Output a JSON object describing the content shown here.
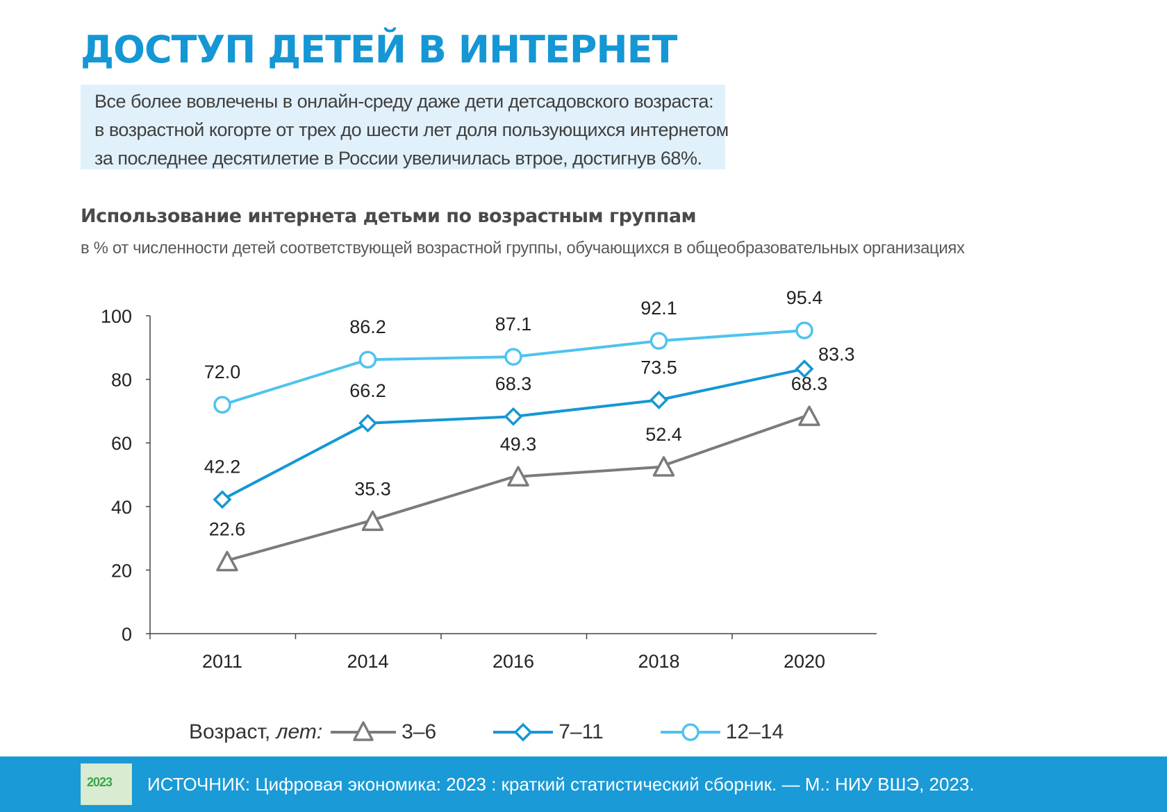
{
  "page": {
    "title": "ДОСТУП ДЕТЕЙ В ИНТЕРНЕТ",
    "lead": [
      "Все более вовлечены в онлайн-среду даже дети детсадовского возраста:",
      "в возрастной когорте от трех до шести лет доля пользующихся интернетом",
      "за последнее десятилетие  в России увеличилась втрое, достигнув 68%."
    ]
  },
  "chart_data": {
    "type": "line",
    "title": "Использование интернета детьми по возрастным группам",
    "subtitle": "в % от численности детей соответствующей возрастной группы,  обучающихся в общеобразовательных организациях",
    "categories": [
      "2011",
      "2014",
      "2016",
      "2018",
      "2020"
    ],
    "ylim": [
      0,
      100
    ],
    "yticks": [
      0,
      20,
      40,
      60,
      80,
      100
    ],
    "grid": false,
    "series": [
      {
        "name": "3–6",
        "marker": "triangle",
        "color": "#7b7b7b",
        "values": [
          22.6,
          35.3,
          49.3,
          52.4,
          68.3
        ],
        "labels": [
          "22.6",
          "35.3",
          "49.3",
          "52.4",
          "68.3"
        ]
      },
      {
        "name": "7–11",
        "marker": "diamond",
        "color": "#1497d4",
        "values": [
          42.2,
          66.2,
          68.3,
          73.5,
          83.3
        ],
        "labels": [
          "42.2",
          "66.2",
          "68.3",
          "73.5",
          "83.3"
        ]
      },
      {
        "name": "12–14",
        "marker": "circle",
        "color": "#4ec3ee",
        "values": [
          72.0,
          86.2,
          87.1,
          92.1,
          95.4
        ],
        "labels": [
          "72.0",
          "86.2",
          "87.1",
          "92.1",
          "95.4"
        ]
      }
    ],
    "legend": {
      "position": "bottom",
      "title_plain": "Возраст, ",
      "title_italic": "лет:"
    }
  },
  "footer": {
    "source": "ИСТОЧНИК: Цифровая экономика: 2023 : краткий статистический сборник. — М.: НИУ ВШЭ, 2023.",
    "thumb_label": "2023"
  }
}
